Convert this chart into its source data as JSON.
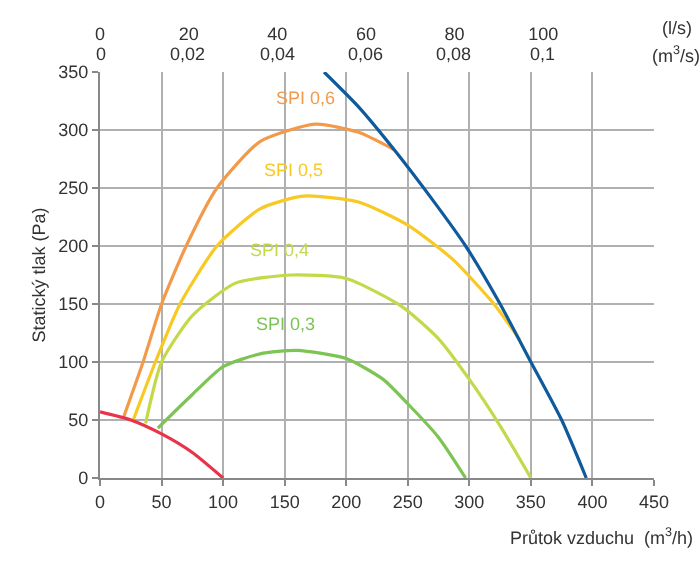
{
  "chart_data": {
    "type": "line",
    "xlabel": "Průtok vzduchu  (m$^{3}$/h)",
    "ylabel": "Statický tlak (Pa)",
    "x2label": "(l/s)",
    "annotations": [
      "0",
      "0,02",
      "0,04",
      "0,06",
      "0,08",
      "0,1",
      "(m$^{3}$/s)"
    ],
    "xlim": [
      0,
      450
    ],
    "xticks": [
      0,
      50,
      100,
      150,
      200,
      250,
      300,
      350,
      400,
      450
    ],
    "ylim": [
      0,
      350
    ],
    "yticks": [
      0,
      50,
      100,
      150,
      200,
      250,
      300,
      350
    ],
    "x2lim": [
      0,
      125
    ],
    "x2ticks": [
      0,
      20,
      40,
      60,
      80,
      100
    ],
    "grid": true,
    "marker": "none",
    "series": [
      {
        "name": "SPI 0,6",
        "color": "#f39a4a",
        "x": [
          19,
          35,
          50,
          70,
          95,
          130,
          175,
          210,
          239
        ],
        "values": [
          52,
          100,
          150,
          200,
          250,
          290,
          305,
          298,
          283
        ]
      },
      {
        "name": "SPI 0,5",
        "color": "#f7c922",
        "x": [
          27,
          45,
          65,
          95,
          130,
          165,
          210,
          250,
          287,
          320,
          341
        ],
        "values": [
          50,
          100,
          150,
          200,
          232,
          243,
          238,
          218,
          188,
          150,
          119
        ]
      },
      {
        "name": "SPI 0,4",
        "color": "#c4d94a",
        "x": [
          37,
          50,
          75,
          110,
          155,
          200,
          245,
          275,
          300,
          325,
          350
        ],
        "values": [
          47,
          100,
          140,
          168,
          175,
          172,
          148,
          120,
          85,
          45,
          0
        ]
      },
      {
        "name": "SPI 0,3",
        "color": "#7dc454",
        "x": [
          47,
          75,
          100,
          130,
          160,
          200,
          230,
          250,
          275,
          297
        ],
        "values": [
          43,
          72,
          96,
          107,
          110,
          103,
          85,
          64,
          35,
          0
        ]
      },
      {
        "color": "#e8334a",
        "x": [
          0,
          25,
          50,
          75,
          100
        ],
        "values": [
          57,
          50,
          38,
          22,
          0
        ]
      },
      {
        "color": "#0f5a9c",
        "x": [
          182,
          210,
          239,
          270,
          297,
          325,
          349,
          375,
          395
        ],
        "values": [
          350,
          320,
          283,
          240,
          200,
          150,
          102,
          50,
          0
        ]
      }
    ]
  }
}
